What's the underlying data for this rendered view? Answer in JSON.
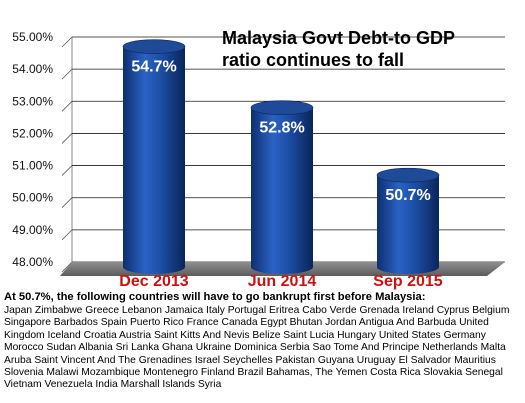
{
  "chart_data": {
    "type": "bar",
    "title": "Malaysia Govt Debt-to GDP ratio continues to fall",
    "title_lines": [
      "Malaysia Govt Debt-to GDP",
      "ratio continues to fall"
    ],
    "categories": [
      "Dec 2013",
      "Jun 2014",
      "Sep 2015"
    ],
    "values": [
      54.7,
      52.8,
      50.7
    ],
    "data_labels": [
      "54.7%",
      "52.8%",
      "50.7%"
    ],
    "ylim": [
      48,
      55
    ],
    "yticks": [
      "55.00%",
      "54.00%",
      "53.00%",
      "52.00%",
      "51.00%",
      "50.00%",
      "49.00%",
      "48.00%"
    ],
    "xlabel": "",
    "ylabel": "",
    "grid": true,
    "bar_color": "#1a4fa8",
    "category_color": "#cc1111"
  },
  "note": {
    "heading": "At 50.7%, the following countries will have to go bankrupt first before Malaysia:",
    "countries": "Japan Zimbabwe Greece Lebanon Jamaica Italy Portugal Eritrea Cabo Verde Grenada Ireland Cyprus Belgium Singapore Barbados Spain Puerto Rico France Canada Egypt Bhutan Jordan Antigua And Barbuda United Kingdom Iceland Croatia Austria Saint Kitts And Nevis Belize Saint Lucia Hungary United States Germany Morocco Sudan Albania Sri Lanka Ghana Ukraine Dominica Serbia Sao Tome And Principe Netherlands Malta Aruba Saint Vincent And The Grenadines Israel Seychelles Pakistan Guyana Uruguay El Salvador Mauritius Slovenia Malawi Mozambique Montenegro Finland Brazil Bahamas, The Yemen Costa Rica Slovakia Senegal Vietnam Venezuela India Marshall Islands Syria"
  }
}
